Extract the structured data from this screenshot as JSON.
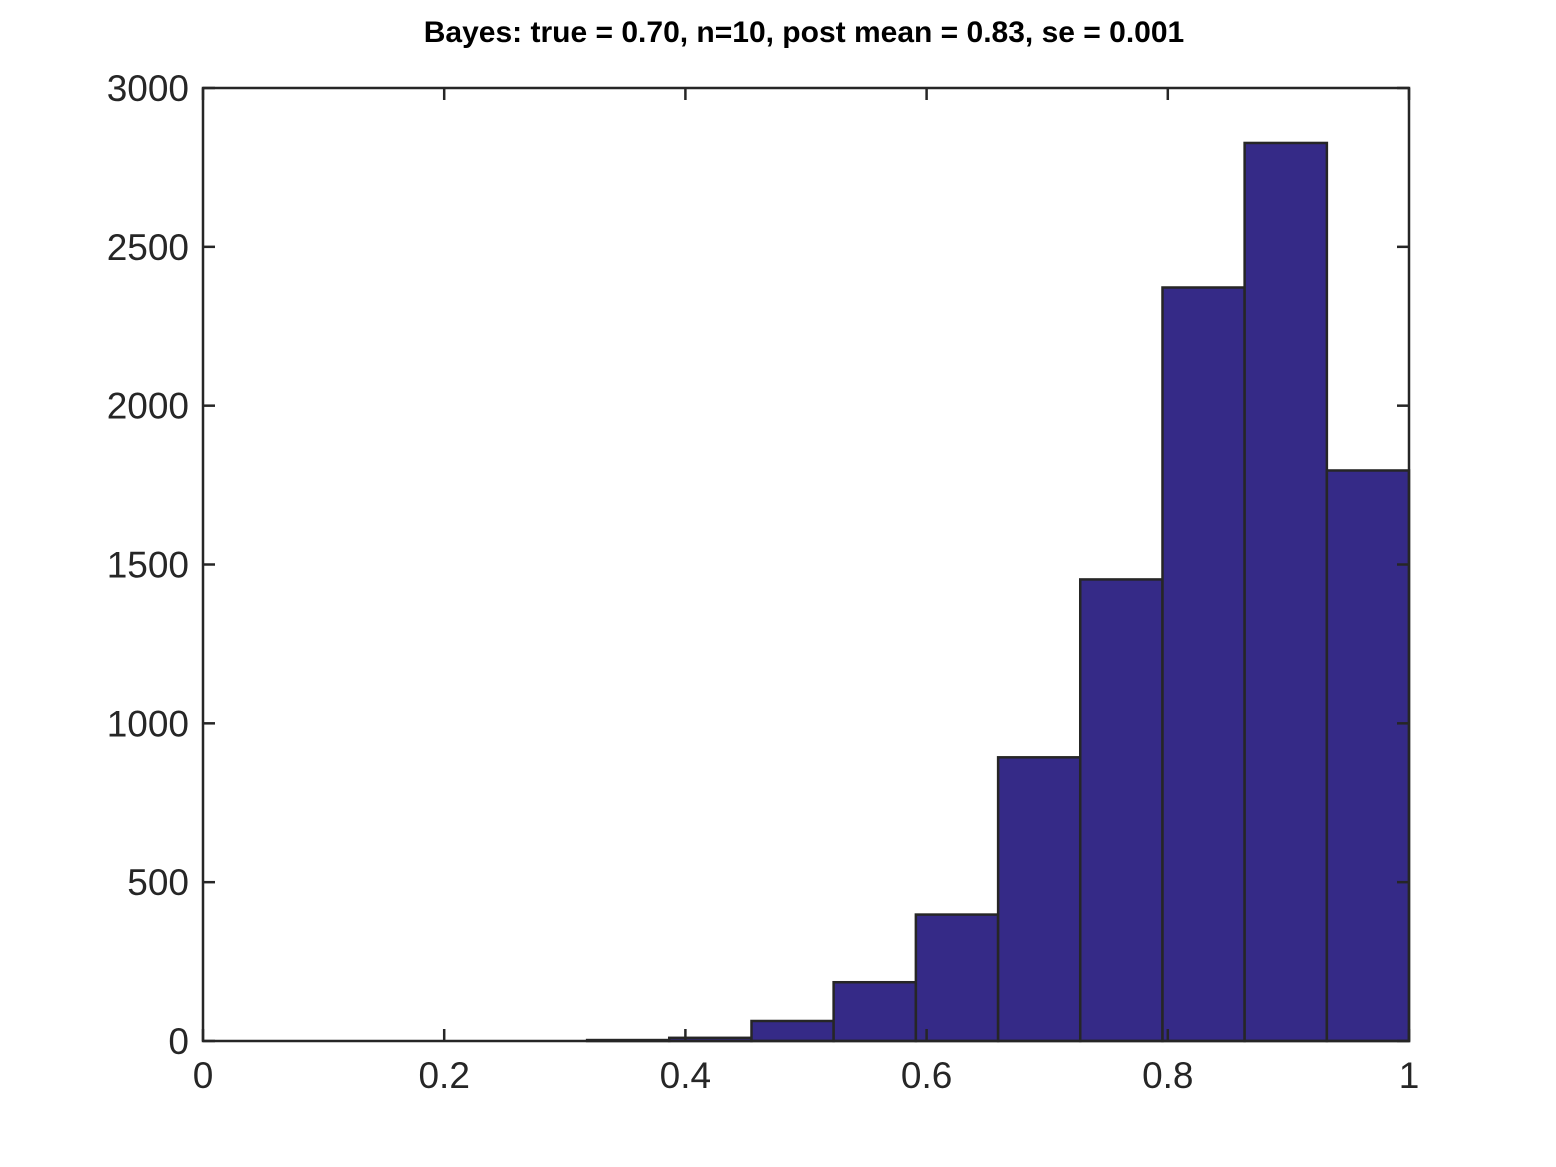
{
  "chart_data": {
    "type": "bar",
    "title": "Bayes: true = 0.70, n=10, post mean = 0.83, se = 0.001",
    "xlabel": "",
    "ylabel": "",
    "xlim": [
      0,
      1
    ],
    "ylim": [
      0,
      3000
    ],
    "xticks": [
      0,
      0.2,
      0.4,
      0.6,
      0.8,
      1
    ],
    "xtick_labels": [
      "0",
      "0.2",
      "0.4",
      "0.6",
      "0.8",
      "1"
    ],
    "yticks": [
      0,
      500,
      1000,
      1500,
      2000,
      2500,
      3000
    ],
    "ytick_labels": [
      "0",
      "500",
      "1000",
      "1500",
      "2000",
      "2500",
      "3000"
    ],
    "bin_edges": [
      0.3185,
      0.3866,
      0.4548,
      0.5229,
      0.5911,
      0.6593,
      0.7274,
      0.7956,
      0.8637,
      0.9319,
      1.0
    ],
    "values": [
      3,
      10,
      63,
      185,
      398,
      893,
      1453,
      2372,
      2827,
      1796
    ],
    "bar_color": "#352a87",
    "edge_color": "#262626",
    "grid": false,
    "legend": false
  }
}
